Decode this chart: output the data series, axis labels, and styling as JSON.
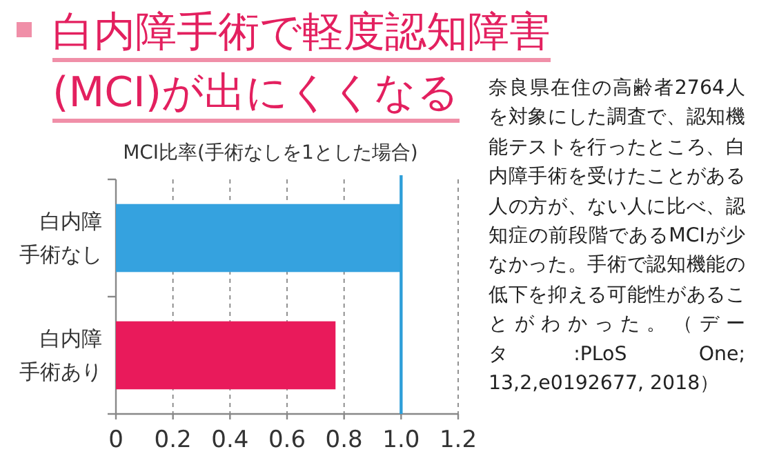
{
  "chart_data": {
    "type": "bar",
    "orientation": "horizontal",
    "title": "白内障手術で軽度認知障害(MCI)が出にくくなる",
    "xlabel": "MCI比率(手術なしを1とした場合)",
    "categories": [
      "白内障手術なし",
      "白内障手術あり"
    ],
    "values": [
      1.0,
      0.77
    ],
    "colors": [
      "#35a2df",
      "#e91a5b"
    ],
    "xlim": [
      0,
      1.2
    ],
    "xticks": [
      0,
      0.2,
      0.4,
      0.6,
      0.8,
      {
        "value": 1,
        "label": "1.0"
      },
      1.2
    ],
    "grid": "x",
    "ref_lines": [
      {
        "axis": "x",
        "value": 1,
        "color": "#2e9fd9"
      }
    ],
    "annotations": [
      "奈良県在住の高齢者2764人を対象にした調査で、認知機能テストを行ったところ、白内障手術を受けたことがある人の方が、ない人に比べ、認知症の前段階であるMCIが少なかった。手術で認知機能の低下を抑える可能性があることがわかった。（データ:PLoS One; 13,2,e0192677, 2018）"
    ]
  }
}
